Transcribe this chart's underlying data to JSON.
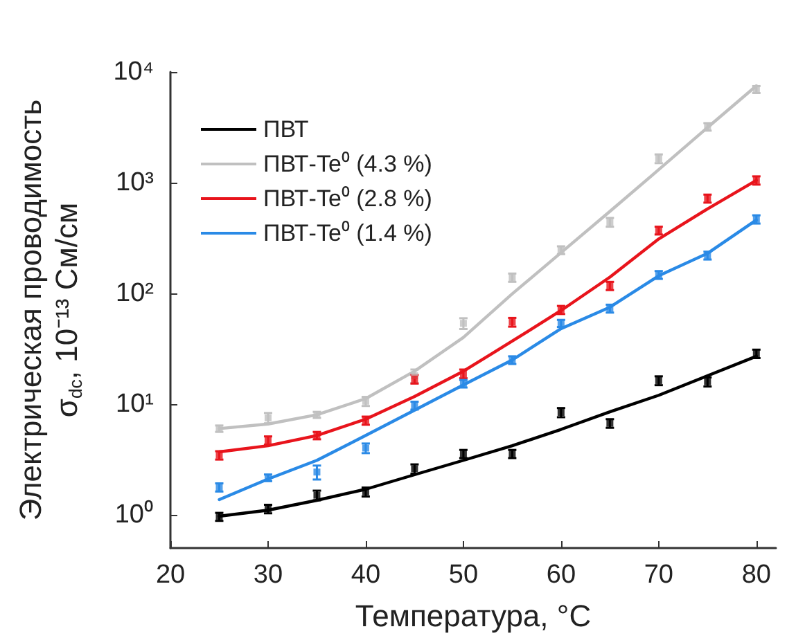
{
  "chart_data": {
    "type": "line",
    "xlabel": "Температура, °C",
    "ylabel": "Электрическая проводимость\nσ$_{dc}$, 10⁻¹³ См/см",
    "x": [
      25,
      30,
      35,
      40,
      45,
      50,
      55,
      60,
      65,
      70,
      75,
      80
    ],
    "series": [
      {
        "name": "ПВТ",
        "color": "#000000",
        "values": [
          0.97,
          1.1,
          1.35,
          1.7,
          2.3,
          3.1,
          4.2,
          5.9,
          8.5,
          12,
          18,
          27
        ]
      },
      {
        "name": "ПВТ-Te⁰ (4.3 %)",
        "color": "#c0c0c0",
        "values": [
          6.0,
          6.6,
          8.0,
          11.2,
          19.8,
          40,
          99,
          233,
          550,
          1310,
          3150,
          7500
        ]
      },
      {
        "name": "ПВТ-Te⁰ (2.8 %)",
        "color": "#e8141c",
        "values": [
          3.7,
          4.2,
          5.2,
          7.3,
          11.7,
          19.8,
          37,
          70,
          140,
          310,
          580,
          1050
        ]
      },
      {
        "name": "ПВТ-Te⁰ (1.4 %)",
        "color": "#2a8ae6",
        "values": [
          1.37,
          2.1,
          3.1,
          5.2,
          8.8,
          14.9,
          25,
          48,
          75,
          144,
          230,
          460
        ]
      },
      {
        "color": "#000000",
        "type": "scatter",
        "marker": "square",
        "values": [
          0.96,
          1.13,
          1.5,
          1.61,
          2.6,
          3.55,
          3.55,
          8.4,
          6.7,
          16.3,
          15.9,
          28.5
        ],
        "errors": [
          0.08,
          0.1,
          0.15,
          0.15,
          0.25,
          0.3,
          0.3,
          0.8,
          0.6,
          1.5,
          1.5,
          2.5
        ]
      },
      {
        "color": "#c0c0c0",
        "type": "scatter",
        "marker": "square",
        "values": [
          6.0,
          7.5,
          8.0,
          10.6,
          18,
          53.6,
          139,
          246,
          440,
          1650,
          3200,
          6950
        ],
        "errors": [
          0.4,
          0.8,
          0.5,
          1,
          2.5,
          6,
          12,
          20,
          40,
          150,
          250,
          500
        ]
      },
      {
        "color": "#e8141c",
        "type": "scatter",
        "marker": "square",
        "values": [
          3.45,
          4.7,
          5.2,
          7.1,
          16.8,
          18.8,
          55,
          71,
          117,
          370,
          720,
          1050
        ],
        "errors": [
          0.3,
          0.4,
          0.4,
          0.6,
          1.5,
          1.7,
          5,
          6,
          10,
          30,
          60,
          90
        ]
      },
      {
        "color": "#2a8ae6",
        "type": "scatter",
        "marker": "square",
        "values": [
          1.77,
          2.16,
          2.43,
          4.0,
          9.7,
          15.3,
          25,
          53.6,
          73,
          147,
          220,
          467
        ],
        "errors": [
          0.15,
          0.15,
          0.35,
          0.4,
          0.8,
          1.2,
          2,
          4,
          6,
          12,
          18,
          40
        ]
      }
    ],
    "xlim": [
      20,
      82
    ],
    "xticks": [
      20,
      30,
      40,
      50,
      60,
      70,
      80
    ],
    "ylim": [
      0.5,
      10000
    ],
    "yticks": [
      {
        "value": 1,
        "label": "10⁰"
      },
      {
        "value": 10,
        "label": "10¹"
      },
      {
        "value": 100,
        "label": "10²"
      },
      {
        "value": 1000,
        "label": "10³"
      },
      {
        "value": 10000,
        "label": "10⁴"
      }
    ],
    "log": "y",
    "grid": false,
    "legend": "top left",
    "marker": "none",
    "line_style": "solid"
  }
}
